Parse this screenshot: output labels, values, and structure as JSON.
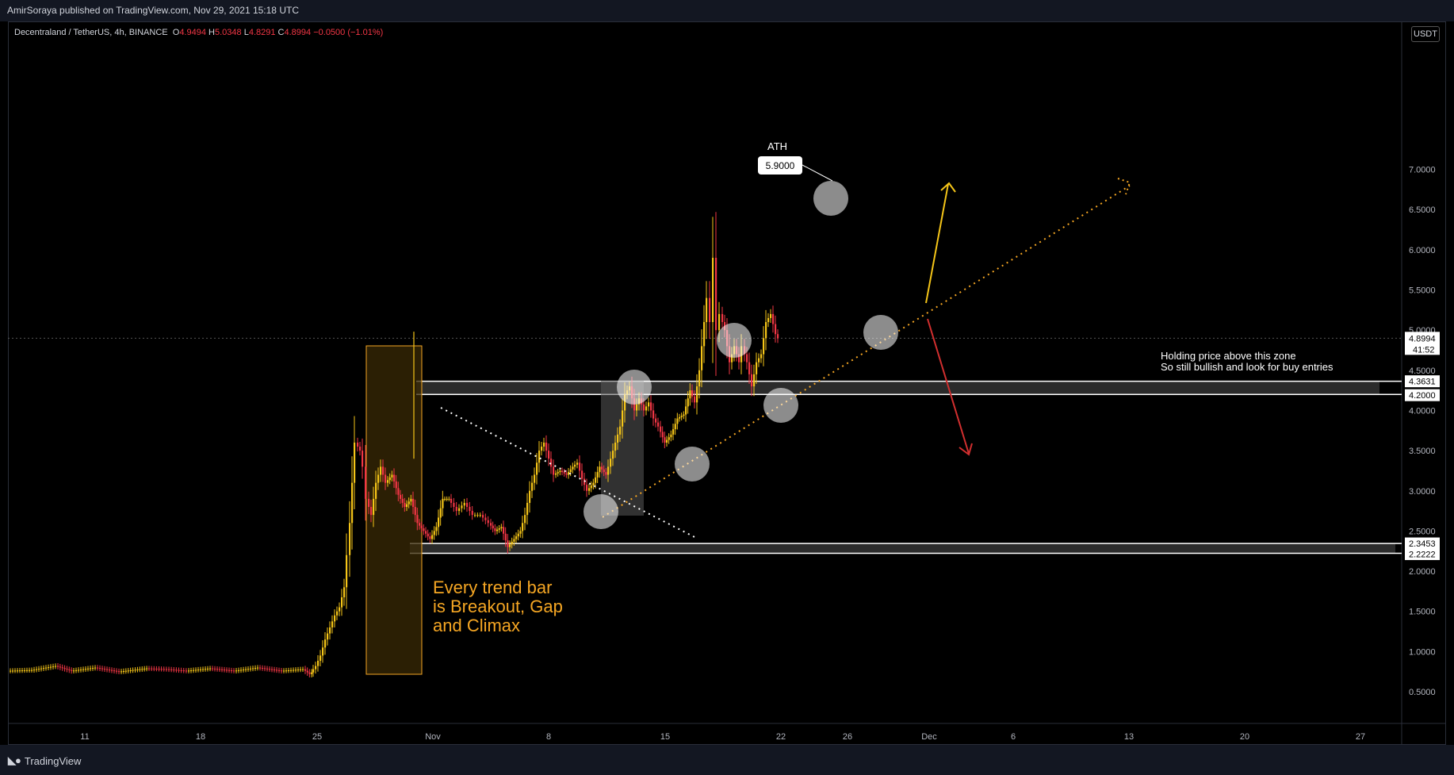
{
  "header": {
    "publisher": "AmirSoraya published on TradingView.com, Nov 29, 2021 15:18 UTC"
  },
  "legend": {
    "symbol": "Decentraland / TetherUS, 4h, BINANCE",
    "open_label": "O",
    "open": "4.9494",
    "high_label": "H",
    "high": "5.0348",
    "low_label": "L",
    "low": "4.8291",
    "close_label": "C",
    "close": "4.8994",
    "change": "−0.0500 (−1.01%)"
  },
  "currency": "USDT",
  "footer": {
    "brand": "TradingView"
  },
  "colors": {
    "bull": "#f5c518",
    "bear": "#f23645",
    "accent_orange": "#f5a623",
    "background": "#000000"
  },
  "chart_data": {
    "type": "candlestick",
    "symbol": "Decentraland / TetherUS",
    "timeframe": "4h",
    "exchange": "BINANCE",
    "y_ticks": [
      "7.0000",
      "6.5000",
      "6.0000",
      "5.5000",
      "5.0000",
      "4.5000",
      "4.0000",
      "3.5000",
      "3.0000",
      "2.5000",
      "2.0000",
      "1.5000",
      "1.0000",
      "0.5000"
    ],
    "ylim": [
      0.15,
      7.55
    ],
    "x_ticks": [
      "11",
      "18",
      "25",
      "Nov",
      "8",
      "15",
      "22",
      "26",
      "Dec",
      "6",
      "13",
      "20",
      "27"
    ],
    "last_price": {
      "value": "4.8994",
      "countdown": "41:52"
    },
    "ath": {
      "label": "ATH",
      "value": "5.9000"
    },
    "zones": [
      {
        "upper": "4.3631",
        "lower": "4.2000"
      },
      {
        "upper": "2.3453",
        "lower": "2.2222"
      }
    ],
    "annotations": {
      "trend_bar_text": [
        "Every trend bar",
        "is Breakout, Gap",
        "and Climax"
      ],
      "zone_note": [
        "Holding price above this zone",
        "So still bullish and look for buy entries"
      ]
    },
    "series_path": [
      [
        0,
        0.76
      ],
      [
        30,
        0.77
      ],
      [
        60,
        0.82
      ],
      [
        80,
        0.76
      ],
      [
        110,
        0.8
      ],
      [
        140,
        0.75
      ],
      [
        175,
        0.79
      ],
      [
        200,
        0.78
      ],
      [
        225,
        0.76
      ],
      [
        255,
        0.79
      ],
      [
        285,
        0.76
      ],
      [
        315,
        0.8
      ],
      [
        345,
        0.76
      ],
      [
        372,
        0.78
      ],
      [
        380,
        0.72
      ],
      [
        382,
        0.74
      ],
      [
        388,
        0.82
      ],
      [
        394,
        0.95
      ],
      [
        400,
        1.15
      ],
      [
        406,
        1.3
      ],
      [
        412,
        1.45
      ],
      [
        418,
        1.55
      ],
      [
        424,
        1.8
      ],
      [
        428,
        2.2
      ],
      [
        431,
        2.6
      ],
      [
        434,
        3.1
      ],
      [
        438,
        3.6
      ],
      [
        444,
        3.5
      ],
      [
        448,
        3.3
      ],
      [
        452,
        2.9
      ],
      [
        458,
        2.7
      ],
      [
        464,
        3.1
      ],
      [
        470,
        3.3
      ],
      [
        476,
        3.1
      ],
      [
        484,
        3.2
      ],
      [
        492,
        2.95
      ],
      [
        500,
        2.8
      ],
      [
        508,
        2.9
      ],
      [
        516,
        2.6
      ],
      [
        524,
        2.5
      ],
      [
        532,
        2.4
      ],
      [
        540,
        2.55
      ],
      [
        548,
        2.9
      ],
      [
        556,
        2.9
      ],
      [
        566,
        2.75
      ],
      [
        576,
        2.85
      ],
      [
        586,
        2.7
      ],
      [
        596,
        2.7
      ],
      [
        606,
        2.6
      ],
      [
        614,
        2.5
      ],
      [
        622,
        2.55
      ],
      [
        630,
        2.3
      ],
      [
        638,
        2.4
      ],
      [
        646,
        2.5
      ],
      [
        652,
        2.7
      ],
      [
        658,
        3.0
      ],
      [
        664,
        3.2
      ],
      [
        670,
        3.5
      ],
      [
        676,
        3.6
      ],
      [
        682,
        3.4
      ],
      [
        688,
        3.2
      ],
      [
        696,
        3.25
      ],
      [
        704,
        3.2
      ],
      [
        712,
        3.3
      ],
      [
        718,
        3.35
      ],
      [
        724,
        3.15
      ],
      [
        730,
        3.0
      ],
      [
        738,
        3.1
      ],
      [
        746,
        3.3
      ],
      [
        754,
        3.2
      ],
      [
        760,
        3.4
      ],
      [
        766,
        3.6
      ],
      [
        772,
        3.8
      ],
      [
        778,
        4.2
      ],
      [
        784,
        4.3
      ],
      [
        790,
        4.0
      ],
      [
        796,
        4.15
      ],
      [
        802,
        4.0
      ],
      [
        808,
        4.1
      ],
      [
        814,
        3.9
      ],
      [
        820,
        3.8
      ],
      [
        828,
        3.6
      ],
      [
        836,
        3.7
      ],
      [
        844,
        3.9
      ],
      [
        852,
        3.95
      ],
      [
        860,
        4.25
      ],
      [
        866,
        4.1
      ],
      [
        872,
        4.5
      ],
      [
        878,
        5.1
      ],
      [
        882,
        5.4
      ],
      [
        886,
        5.1
      ],
      [
        890,
        5.9
      ],
      [
        894,
        5.0
      ],
      [
        898,
        5.2
      ],
      [
        904,
        5.0
      ],
      [
        910,
        4.6
      ],
      [
        916,
        4.8
      ],
      [
        922,
        4.6
      ],
      [
        926,
        4.8
      ],
      [
        932,
        4.6
      ],
      [
        938,
        4.3
      ],
      [
        944,
        4.6
      ],
      [
        950,
        4.7
      ],
      [
        956,
        5.1
      ],
      [
        962,
        5.2
      ],
      [
        968,
        4.95
      ],
      [
        972,
        4.9
      ]
    ]
  }
}
